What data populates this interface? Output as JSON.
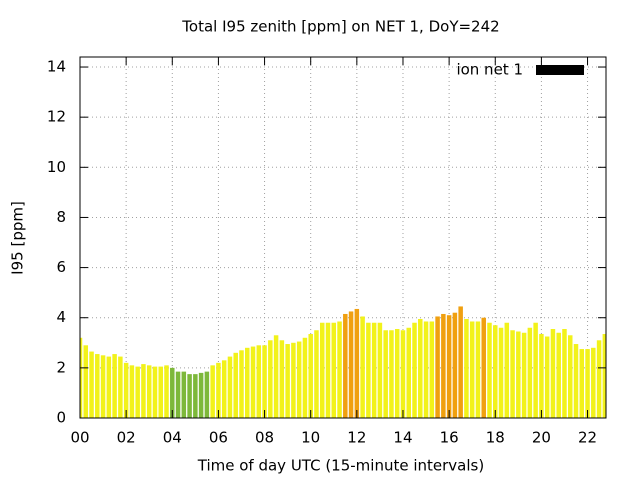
{
  "chart_data": {
    "type": "bar",
    "title": "Total I95 zenith [ppm] on NET 1, DoY=242",
    "xlabel": "Time of day UTC (15-minute intervals)",
    "ylabel": "I95 [ppm]",
    "series": [
      {
        "name": "ion net 1",
        "color": "#000000",
        "x": [
          0,
          0.25,
          0.5,
          0.75,
          1,
          1.25,
          1.5,
          1.75,
          2,
          2.25,
          2.5,
          2.75,
          3,
          3.25,
          3.5,
          3.75,
          4,
          4.25,
          4.5,
          4.75,
          5,
          5.25,
          5.5,
          5.75,
          6,
          6.25,
          6.5,
          6.75,
          7,
          7.25,
          7.5,
          7.75,
          8,
          8.25,
          8.5,
          8.75,
          9,
          9.25,
          9.5,
          9.75,
          10,
          10.25,
          10.5,
          10.75,
          11,
          11.25,
          11.5,
          11.75,
          12,
          12.25,
          12.5,
          12.75,
          13,
          13.25,
          13.5,
          13.75,
          14,
          14.25,
          14.5,
          14.75,
          15,
          15.25,
          15.5,
          15.75,
          16,
          16.25,
          16.5,
          16.75,
          17,
          17.25,
          17.5,
          17.75,
          18,
          18.25,
          18.5,
          18.75,
          19,
          19.25,
          19.5,
          19.75,
          20,
          20.25,
          20.5,
          20.75,
          21,
          21.25,
          21.5,
          21.75,
          22,
          22.25,
          22.5,
          22.75
        ],
        "values": [
          3.2,
          2.9,
          2.65,
          2.55,
          2.5,
          2.45,
          2.55,
          2.45,
          2.2,
          2.1,
          2.05,
          2.15,
          2.1,
          2.05,
          2.05,
          2.1,
          2.0,
          1.85,
          1.85,
          1.75,
          1.75,
          1.8,
          1.85,
          2.1,
          2.2,
          2.3,
          2.45,
          2.6,
          2.7,
          2.8,
          2.85,
          2.9,
          2.9,
          3.1,
          3.3,
          3.1,
          2.95,
          3.0,
          3.05,
          3.2,
          3.35,
          3.5,
          3.8,
          3.8,
          3.8,
          3.85,
          4.15,
          4.25,
          4.35,
          4.05,
          3.8,
          3.8,
          3.8,
          3.5,
          3.5,
          3.55,
          3.5,
          3.6,
          3.8,
          3.95,
          3.85,
          3.85,
          4.05,
          4.15,
          4.1,
          4.2,
          4.45,
          3.95,
          3.85,
          3.85,
          4.0,
          3.8,
          3.7,
          3.6,
          3.8,
          3.5,
          3.45,
          3.4,
          3.6,
          3.8,
          3.35,
          3.25,
          3.55,
          3.4,
          3.55,
          3.3,
          2.95,
          2.75,
          2.75,
          2.8,
          3.1,
          3.35
        ],
        "bar_colors": [
          "#f2f21a",
          "#f2f21a",
          "#f2f21a",
          "#f2f21a",
          "#f2f21a",
          "#f2f21a",
          "#f2f21a",
          "#f2f21a",
          "#f2f21a",
          "#f2f21a",
          "#f2f21a",
          "#f2f21a",
          "#f2f21a",
          "#f2f21a",
          "#f2f21a",
          "#f2f21a",
          "#7db83a",
          "#7db83a",
          "#7db83a",
          "#7db83a",
          "#7db83a",
          "#7db83a",
          "#7db83a",
          "#f2f21a",
          "#f2f21a",
          "#f2f21a",
          "#f2f21a",
          "#f2f21a",
          "#f2f21a",
          "#f2f21a",
          "#f2f21a",
          "#f2f21a",
          "#f2f21a",
          "#f2f21a",
          "#f2f21a",
          "#f2f21a",
          "#f2f21a",
          "#f2f21a",
          "#f2f21a",
          "#f2f21a",
          "#f2f21a",
          "#f2f21a",
          "#f2f21a",
          "#f2f21a",
          "#f2f21a",
          "#f2f21a",
          "#f0a010",
          "#f0a010",
          "#f0a010",
          "#f2f21a",
          "#f2f21a",
          "#f2f21a",
          "#f2f21a",
          "#f2f21a",
          "#f2f21a",
          "#f2f21a",
          "#f2f21a",
          "#f2f21a",
          "#f2f21a",
          "#f2f21a",
          "#f2f21a",
          "#f2f21a",
          "#f0a010",
          "#f0a010",
          "#f0a010",
          "#f0a010",
          "#f0a010",
          "#f2f21a",
          "#f2f21a",
          "#f2f21a",
          "#f0a010",
          "#f2f21a",
          "#f2f21a",
          "#f2f21a",
          "#f2f21a",
          "#f2f21a",
          "#f2f21a",
          "#f2f21a",
          "#f2f21a",
          "#f2f21a",
          "#f2f21a",
          "#f2f21a",
          "#f2f21a",
          "#f2f21a",
          "#f2f21a",
          "#f2f21a",
          "#f2f21a",
          "#f2f21a",
          "#f2f21a",
          "#f2f21a",
          "#f2f21a",
          "#f2f21a"
        ]
      }
    ],
    "xlim": [
      0,
      22.8
    ],
    "xticks": [
      {
        "value": 0,
        "label": "00"
      },
      {
        "value": 2,
        "label": "02"
      },
      {
        "value": 4,
        "label": "04"
      },
      {
        "value": 6,
        "label": "06"
      },
      {
        "value": 8,
        "label": "08"
      },
      {
        "value": 10,
        "label": "10"
      },
      {
        "value": 12,
        "label": "12"
      },
      {
        "value": 14,
        "label": "14"
      },
      {
        "value": 16,
        "label": "16"
      },
      {
        "value": 18,
        "label": "18"
      },
      {
        "value": 20,
        "label": "20"
      },
      {
        "value": 22,
        "label": "22"
      }
    ],
    "ylim": [
      0,
      14.4
    ],
    "yticks": [
      0,
      2,
      4,
      6,
      8,
      10,
      12,
      14
    ],
    "grid": true,
    "legend": "top-right"
  }
}
